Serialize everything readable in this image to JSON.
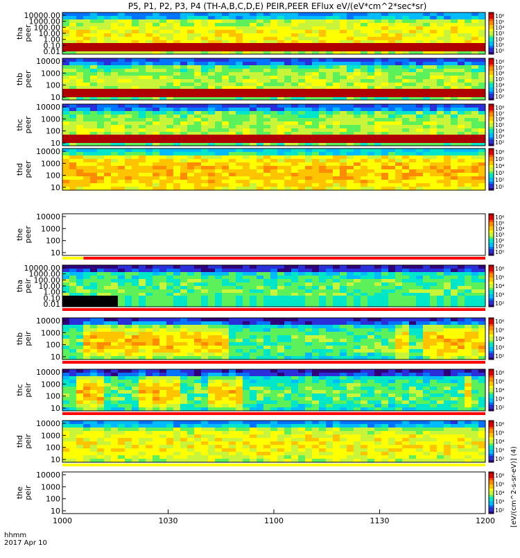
{
  "title": "P5, P1, P2, P3, P4 (TH-A,B,C,D,E) PEIR,PEER EFlux eV/(eV*cm^2*sec*sr)",
  "x_footer": {
    "line1": "hhmm",
    "line2": "2017 Apr 10"
  },
  "cbar_label": "[eV/(cm^2-s-sr-eV)] (4)",
  "colors": {
    "bar_red": "#ff0000",
    "bar_yellow": "#ffff00",
    "fill": "#000000"
  },
  "chart_data": {
    "type": "heatmap",
    "x_ticks": [
      "1000",
      "1030",
      "1100",
      "1130",
      "1200"
    ],
    "x_range": [
      "10:00",
      "12:00"
    ],
    "panels": [
      {
        "id": "tha_peer",
        "label": "tha peer",
        "yticks": [
          "10000.00",
          "1000.00",
          "100.00",
          "10.00",
          "1.00",
          "0.10",
          "0.01"
        ],
        "cb": [
          "10⁶",
          "10⁵",
          "10⁴",
          "10³",
          "10²",
          "10¹",
          "10⁰"
        ],
        "base": 7,
        "bottom": "dark",
        "hi": [],
        "empty": false
      },
      {
        "id": "thb_peer",
        "label": "thb peer",
        "yticks": [
          "10000",
          "1000",
          "100",
          "10"
        ],
        "cb": [
          "10⁸",
          "10⁷",
          "10⁶",
          "10⁵",
          "10⁴",
          "10³",
          "10²"
        ],
        "base": 6,
        "bottom": "dark",
        "hi": [],
        "empty": false
      },
      {
        "id": "thc_peer",
        "label": "thc peer",
        "yticks": [
          "10000",
          "1000",
          "100",
          "10"
        ],
        "cb": [
          "10⁸",
          "10⁷",
          "10⁶",
          "10⁵",
          "10⁴",
          "10³",
          "10²"
        ],
        "base": 6,
        "bottom": "dark",
        "hi": [],
        "empty": false
      },
      {
        "id": "thd_peer",
        "label": "thd peer",
        "yticks": [
          "10000",
          "1000",
          "100",
          "10"
        ],
        "cb": [
          "10⁶",
          "10⁵",
          "10⁴",
          "10³",
          "10²",
          "10¹"
        ],
        "base": 8,
        "bottom": "none",
        "hi": [],
        "empty": false
      },
      {
        "id": "the_peer",
        "label": "the peer",
        "yticks": [
          "10000",
          "1000",
          "100",
          "10"
        ],
        "cb": [
          "10⁶",
          "10⁵",
          "10⁴",
          "10³",
          "10²",
          "10¹",
          "10⁰"
        ],
        "base": 0,
        "bottom": "none",
        "hi": [],
        "empty": true
      },
      {
        "id": "tha_peir",
        "label": "tha peir",
        "yticks": [
          "10000.00",
          "1000.00",
          "100.00",
          "10.00",
          "1.00",
          "0.10",
          "0.01"
        ],
        "cb": [
          "10⁶",
          "10⁵",
          "10⁴",
          "10³",
          "10²"
        ],
        "base": 5,
        "bottom": "noise",
        "hi": [],
        "empty": false
      },
      {
        "id": "thb_peir",
        "label": "thb peir",
        "yticks": [
          "10000",
          "1000",
          "100",
          "10"
        ],
        "cb": [
          "10⁶",
          "10⁵",
          "10⁴",
          "10³",
          "10²"
        ],
        "base": 5,
        "bottom": "none",
        "hi": [
          [
            0.04,
            0.39
          ],
          [
            0.79,
            0.83
          ],
          [
            0.86,
            1.0
          ]
        ],
        "empty": false
      },
      {
        "id": "thc_peir",
        "label": "thc peir",
        "yticks": [
          "10000",
          "1000",
          "100",
          "10"
        ],
        "cb": [
          "10⁶",
          "10⁵",
          "10⁴",
          "10³",
          "10²"
        ],
        "base": 5,
        "bottom": "none",
        "hi": [
          [
            0.02,
            0.09
          ],
          [
            0.17,
            0.27
          ],
          [
            0.35,
            0.43
          ],
          [
            0.96,
            0.98
          ]
        ],
        "empty": false
      },
      {
        "id": "thd_peir",
        "label": "thd peir",
        "yticks": [
          "10000",
          "1000",
          "100",
          "10"
        ],
        "cb": [
          "10⁶",
          "10⁵",
          "10⁴",
          "10³",
          "10²"
        ],
        "base": 7,
        "bottom": "none",
        "hi": [],
        "empty": false
      },
      {
        "id": "the_peir",
        "label": "the peir",
        "yticks": [
          "10000",
          "1000",
          "100",
          "10"
        ],
        "cb": [
          "10⁶",
          "10⁵",
          "10⁴",
          "10³",
          "10²"
        ],
        "base": 0,
        "bottom": "none",
        "hi": [],
        "empty": true
      }
    ]
  }
}
